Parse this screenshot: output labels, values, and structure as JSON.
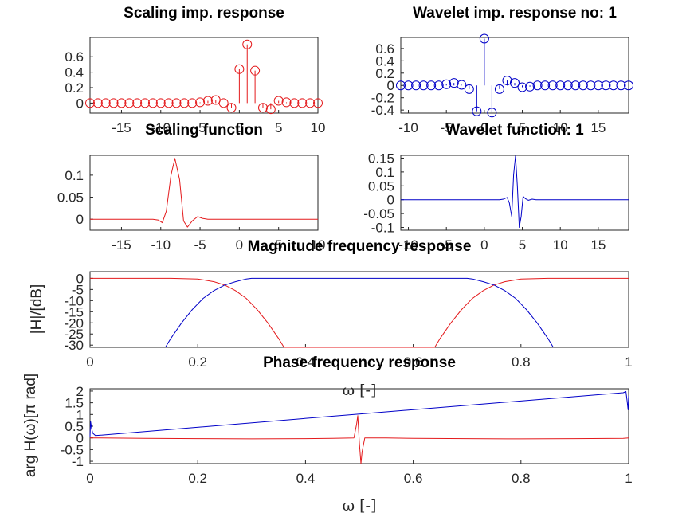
{
  "colors": {
    "scaling": "#e41a1c",
    "wavelet": "#0000c8",
    "axis": "#262626"
  },
  "chart_data": [
    {
      "id": "scaling_imp",
      "type": "stem",
      "title": "Scaling imp. response",
      "xlim": [
        -19,
        10
      ],
      "ylim": [
        -0.13,
        0.85
      ],
      "xticks": [
        -15,
        -10,
        -5,
        0,
        5,
        10
      ],
      "yticks": [
        0,
        0.2,
        0.4,
        0.6
      ],
      "yticklabels": [
        "0",
        "0.2",
        "0.4",
        "0.6"
      ],
      "series": [
        {
          "color": "#e41a1c",
          "x": [
            -19,
            -18,
            -17,
            -16,
            -15,
            -14,
            -13,
            -12,
            -11,
            -10,
            -9,
            -8,
            -7,
            -6,
            -5,
            -4,
            -3,
            -2,
            -1,
            0,
            1,
            2,
            3,
            4,
            5,
            6,
            7,
            8,
            9,
            10
          ],
          "y": [
            0,
            0,
            0,
            0,
            0,
            0,
            0,
            0,
            0,
            0,
            0,
            0,
            0,
            0,
            0.01,
            0.03,
            0.04,
            0,
            -0.06,
            0.44,
            0.76,
            0.42,
            -0.06,
            -0.08,
            0.03,
            0.01,
            0,
            0,
            0,
            0
          ]
        }
      ]
    },
    {
      "id": "wavelet_imp",
      "type": "stem",
      "title": "Wavelet imp. response no: 1",
      "xlim": [
        -11,
        19
      ],
      "ylim": [
        -0.45,
        0.78
      ],
      "xticks": [
        -10,
        -5,
        0,
        5,
        10,
        15
      ],
      "yticks": [
        -0.4,
        -0.2,
        0,
        0.2,
        0.4,
        0.6
      ],
      "yticklabels": [
        "-0.4",
        "-0.2",
        "0",
        "0.2",
        "0.4",
        "0.6"
      ],
      "series": [
        {
          "color": "#0000c8",
          "x": [
            -11,
            -10,
            -9,
            -8,
            -7,
            -6,
            -5,
            -4,
            -3,
            -2,
            -1,
            0,
            1,
            2,
            3,
            4,
            5,
            6,
            7,
            8,
            9,
            10,
            11,
            12,
            13,
            14,
            15,
            16,
            17,
            18,
            19
          ],
          "y": [
            0,
            0,
            0,
            0,
            0,
            0,
            0.02,
            0.04,
            0.01,
            -0.06,
            -0.42,
            0.76,
            -0.44,
            -0.06,
            0.08,
            0.04,
            -0.03,
            -0.02,
            0,
            0,
            0,
            0,
            0,
            0,
            0,
            0,
            0,
            0,
            0,
            0,
            0
          ]
        }
      ]
    },
    {
      "id": "scaling_fn",
      "type": "line",
      "title": "Scaling function",
      "xlim": [
        -19,
        10
      ],
      "ylim": [
        -0.025,
        0.145
      ],
      "xticks": [
        -15,
        -10,
        -5,
        0,
        5,
        10
      ],
      "yticks": [
        0,
        0.05,
        0.1
      ],
      "yticklabels": [
        "0",
        "0.05",
        "0.1"
      ],
      "series": [
        {
          "color": "#e41a1c",
          "x": [
            -19,
            -11,
            -10.3,
            -9.8,
            -9.3,
            -8.7,
            -8.2,
            -7.6,
            -7.1,
            -6.6,
            -6,
            -5.3,
            -4.7,
            -4,
            10
          ],
          "y": [
            0,
            0,
            -0.002,
            -0.008,
            0.018,
            0.1,
            0.138,
            0.09,
            -0.004,
            -0.018,
            -0.004,
            0.006,
            0.002,
            0,
            0
          ]
        }
      ]
    },
    {
      "id": "wavelet_fn",
      "type": "line",
      "title": "Wavelet function: 1",
      "xlim": [
        -11,
        19
      ],
      "ylim": [
        -0.11,
        0.16
      ],
      "xticks": [
        -10,
        -5,
        0,
        5,
        10,
        15
      ],
      "yticks": [
        -0.1,
        -0.05,
        0,
        0.05,
        0.1,
        0.15
      ],
      "yticklabels": [
        "-0.1",
        "-0.05",
        "0",
        "0.05",
        "0.1",
        "0.15"
      ],
      "series": [
        {
          "color": "#0000c8",
          "x": [
            -11,
            2,
            2.5,
            3,
            3.3,
            3.6,
            3.85,
            4.1,
            4.35,
            4.6,
            4.85,
            5.1,
            5.4,
            5.8,
            6.3,
            6.8,
            19
          ],
          "y": [
            0,
            0,
            0.002,
            0.008,
            -0.012,
            -0.06,
            0.09,
            0.158,
            0.05,
            -0.1,
            -0.06,
            0.012,
            0.004,
            -0.002,
            0.002,
            0,
            0
          ]
        }
      ]
    },
    {
      "id": "mag_resp",
      "type": "line",
      "title": "Magnitude frequency response",
      "xlabel": "ω [-]",
      "ylabel": "|H|/[dB]",
      "xlim": [
        0,
        1
      ],
      "ylim": [
        -31,
        3
      ],
      "xticks": [
        0,
        0.2,
        0.4,
        0.6,
        0.8,
        1
      ],
      "xticklabels": [
        "0",
        "0.2",
        "0.4",
        "0.6",
        "0.8",
        "1"
      ],
      "yticks": [
        -30,
        -25,
        -20,
        -15,
        -10,
        -5,
        0
      ],
      "yticklabels": [
        "-30",
        "-25",
        "-20",
        "-15",
        "-10",
        "-5",
        "0"
      ],
      "series": [
        {
          "color": "#e41a1c",
          "x": [
            0,
            0.15,
            0.2,
            0.23,
            0.25,
            0.27,
            0.29,
            0.31,
            0.33,
            0.35,
            0.36,
            0.64,
            0.65,
            0.67,
            0.69,
            0.71,
            0.73,
            0.75,
            0.77,
            0.8,
            0.85,
            1
          ],
          "y": [
            0,
            0,
            -0.3,
            -1.5,
            -3,
            -5.5,
            -9,
            -14,
            -20,
            -27,
            -31,
            -31,
            -27,
            -20,
            -14,
            -9,
            -5.5,
            -3,
            -1.5,
            -0.3,
            0,
            0
          ]
        },
        {
          "color": "#0000c8",
          "x": [
            0.14,
            0.15,
            0.17,
            0.19,
            0.21,
            0.23,
            0.25,
            0.27,
            0.29,
            0.3,
            0.35,
            0.7,
            0.71,
            0.73,
            0.75,
            0.77,
            0.79,
            0.81,
            0.83,
            0.85,
            0.86
          ],
          "y": [
            -31,
            -27,
            -20,
            -14,
            -9,
            -5.5,
            -3,
            -1.5,
            -0.3,
            0,
            0,
            0,
            -0.3,
            -1.5,
            -3,
            -5.5,
            -9,
            -14,
            -20,
            -27,
            -31
          ]
        }
      ]
    },
    {
      "id": "phase_resp",
      "type": "line",
      "title": "Phase frequency response",
      "xlabel": "ω [-]",
      "ylabel": "arg H(ω)[π rad]",
      "xlim": [
        0,
        1
      ],
      "ylim": [
        -1.1,
        2.1
      ],
      "xticks": [
        0,
        0.2,
        0.4,
        0.6,
        0.8,
        1
      ],
      "xticklabels": [
        "0",
        "0.2",
        "0.4",
        "0.6",
        "0.8",
        "1"
      ],
      "yticks": [
        -1,
        -0.5,
        0,
        0.5,
        1,
        1.5,
        2
      ],
      "yticklabels": [
        "-1",
        "-0.5",
        "0",
        "0.5",
        "1",
        "1.5",
        "2"
      ],
      "series": [
        {
          "color": "#e41a1c",
          "x": [
            0,
            0.01,
            0.1,
            0.2,
            0.3,
            0.4,
            0.45,
            0.49,
            0.495,
            0.497,
            0.5,
            0.503,
            0.505,
            0.51,
            0.55,
            0.6,
            0.7,
            0.8,
            0.9,
            0.99,
            1
          ],
          "y": [
            0,
            0,
            -0.02,
            -0.03,
            -0.04,
            -0.03,
            -0.02,
            0,
            0.6,
            0.95,
            -0.2,
            -1.1,
            -0.6,
            0,
            0,
            -0.02,
            -0.03,
            -0.04,
            -0.03,
            -0.02,
            0
          ]
        },
        {
          "color": "#0000c8",
          "x": [
            0,
            0.001,
            0.003,
            0.005,
            0.01,
            0.5,
            0.99,
            0.995,
            0.997,
            0.999,
            1
          ],
          "y": [
            0.05,
            0.7,
            0.4,
            0.2,
            0.1,
            1.02,
            1.93,
            1.98,
            1.6,
            1.2,
            1.8
          ]
        }
      ]
    }
  ]
}
